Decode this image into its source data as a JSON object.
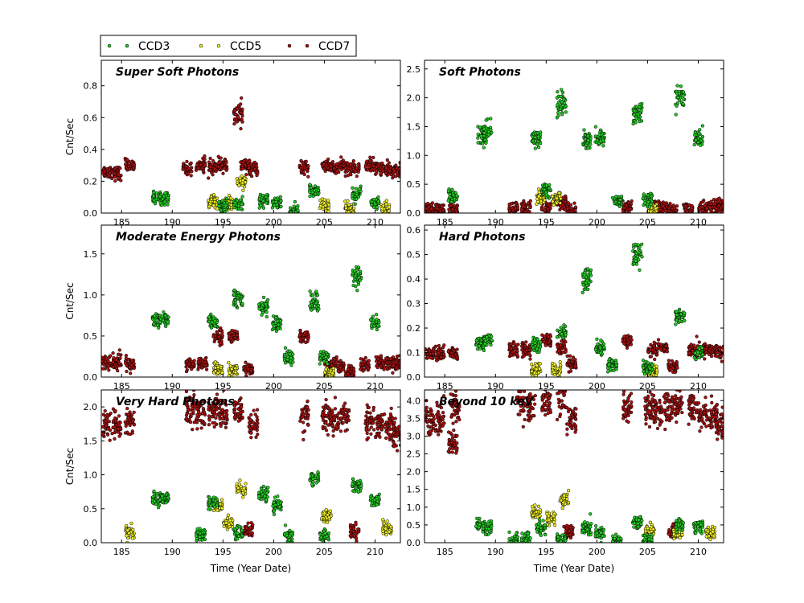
{
  "legend": {
    "entries": [
      {
        "label": "CCD3",
        "color": "#22cc22"
      },
      {
        "label": "CCD5",
        "color": "#eeee22"
      },
      {
        "label": "CCD7",
        "color": "#aa1111"
      }
    ],
    "position": "top-left, above plots"
  },
  "chart_data": [
    {
      "type": "scatter",
      "title": "Super Soft Photons",
      "xlabel": "",
      "ylabel": "Cnt/Sec",
      "xlim": [
        183,
        212.5
      ],
      "ylim": [
        0,
        0.96
      ],
      "xticks": [
        "185",
        "190",
        "195",
        "200",
        "205",
        "210"
      ],
      "yticks": [
        "0.0",
        "0.2",
        "0.4",
        "0.6",
        "0.8"
      ],
      "series": [
        {
          "name": "CCD3",
          "clusters": [
            [
              188.5,
              0.09
            ],
            [
              189.2,
              0.09
            ],
            [
              195.0,
              0.05
            ],
            [
              196.5,
              0.06
            ],
            [
              199.0,
              0.08
            ],
            [
              200.3,
              0.06
            ],
            [
              202.0,
              0.0
            ],
            [
              204.0,
              0.14
            ],
            [
              208.2,
              0.12
            ],
            [
              210.0,
              0.06
            ]
          ]
        },
        {
          "name": "CCD5",
          "clusters": [
            [
              194.0,
              0.07
            ],
            [
              195.5,
              0.06
            ],
            [
              196.8,
              0.2
            ],
            [
              205.0,
              0.05
            ],
            [
              207.5,
              0.03
            ],
            [
              211.0,
              0.03
            ]
          ]
        },
        {
          "name": "CCD7",
          "clusters": [
            [
              183.5,
              0.26
            ],
            [
              184.5,
              0.25
            ],
            [
              185.8,
              0.3
            ],
            [
              191.5,
              0.28
            ],
            [
              192.8,
              0.3
            ],
            [
              194.0,
              0.29
            ],
            [
              195.0,
              0.3
            ],
            [
              196.5,
              0.62
            ],
            [
              197.2,
              0.3
            ],
            [
              198.0,
              0.28
            ],
            [
              203.0,
              0.28
            ],
            [
              205.2,
              0.3
            ],
            [
              206.0,
              0.28
            ],
            [
              207.0,
              0.29
            ],
            [
              208.0,
              0.28
            ],
            [
              209.5,
              0.3
            ],
            [
              210.5,
              0.28
            ],
            [
              211.5,
              0.27
            ],
            [
              212.2,
              0.27
            ]
          ]
        }
      ]
    },
    {
      "type": "scatter",
      "title": "Soft Photons",
      "xlabel": "",
      "ylabel": "",
      "xlim": [
        183,
        212.5
      ],
      "ylim": [
        0,
        2.65
      ],
      "xticks": [
        "185",
        "190",
        "195",
        "200",
        "205",
        "210"
      ],
      "yticks": [
        "0.0",
        "0.5",
        "1.0",
        "1.5",
        "2.0",
        "2.5"
      ],
      "series": [
        {
          "name": "CCD3",
          "clusters": [
            [
              185.8,
              0.3
            ],
            [
              188.7,
              1.35
            ],
            [
              189.2,
              1.4
            ],
            [
              194.0,
              1.3
            ],
            [
              195.0,
              0.4
            ],
            [
              196.5,
              1.9
            ],
            [
              199.0,
              1.25
            ],
            [
              200.3,
              1.3
            ],
            [
              202.0,
              0.2
            ],
            [
              204.0,
              1.75
            ],
            [
              205.0,
              0.25
            ],
            [
              208.2,
              2.0
            ],
            [
              210.0,
              1.3
            ]
          ]
        },
        {
          "name": "CCD5",
          "clusters": [
            [
              194.5,
              0.3
            ],
            [
              196.0,
              0.25
            ],
            [
              205.5,
              0.1
            ]
          ]
        },
        {
          "name": "CCD7",
          "clusters": [
            [
              183.5,
              0.08
            ],
            [
              184.5,
              0.08
            ],
            [
              185.8,
              0.08
            ],
            [
              191.8,
              0.08
            ],
            [
              193.0,
              0.1
            ],
            [
              195.0,
              0.1
            ],
            [
              196.5,
              0.2
            ],
            [
              197.5,
              0.05
            ],
            [
              203.0,
              0.1
            ],
            [
              205.5,
              0.1
            ],
            [
              206.5,
              0.1
            ],
            [
              207.5,
              0.05
            ],
            [
              209.0,
              0.08
            ],
            [
              210.5,
              0.1
            ],
            [
              211.5,
              0.1
            ],
            [
              212.2,
              0.1
            ]
          ]
        }
      ]
    },
    {
      "type": "scatter",
      "title": "Moderate Energy Photons",
      "xlabel": "",
      "ylabel": "Cnt/Sec",
      "xlim": [
        183,
        212.5
      ],
      "ylim": [
        0,
        1.85
      ],
      "xticks": [
        "185",
        "190",
        "195",
        "200",
        "205",
        "210"
      ],
      "yticks": [
        "0.0",
        "0.5",
        "1.0",
        "1.5"
      ],
      "series": [
        {
          "name": "CCD3",
          "clusters": [
            [
              188.5,
              0.7
            ],
            [
              189.2,
              0.72
            ],
            [
              194.0,
              0.68
            ],
            [
              196.5,
              0.95
            ],
            [
              199.0,
              0.85
            ],
            [
              200.3,
              0.65
            ],
            [
              201.5,
              0.25
            ],
            [
              204.0,
              0.9
            ],
            [
              205.0,
              0.25
            ],
            [
              208.2,
              1.2
            ],
            [
              210.0,
              0.65
            ]
          ]
        },
        {
          "name": "CCD5",
          "clusters": [
            [
              194.5,
              0.1
            ],
            [
              196.0,
              0.08
            ],
            [
              205.5,
              0.05
            ]
          ]
        },
        {
          "name": "CCD7",
          "clusters": [
            [
              183.5,
              0.18
            ],
            [
              184.5,
              0.18
            ],
            [
              185.8,
              0.15
            ],
            [
              191.8,
              0.15
            ],
            [
              193.0,
              0.17
            ],
            [
              194.5,
              0.5
            ],
            [
              196.0,
              0.5
            ],
            [
              197.5,
              0.1
            ],
            [
              203.0,
              0.5
            ],
            [
              205.5,
              0.15
            ],
            [
              206.5,
              0.15
            ],
            [
              207.5,
              0.05
            ],
            [
              209.0,
              0.15
            ],
            [
              210.5,
              0.18
            ],
            [
              211.5,
              0.17
            ],
            [
              212.2,
              0.17
            ]
          ]
        }
      ]
    },
    {
      "type": "scatter",
      "title": "Hard Photons",
      "xlabel": "",
      "ylabel": "",
      "xlim": [
        183,
        212.5
      ],
      "ylim": [
        0,
        0.62
      ],
      "xticks": [
        "185",
        "190",
        "195",
        "200",
        "205",
        "210"
      ],
      "yticks": [
        "0.0",
        "0.1",
        "0.2",
        "0.3",
        "0.4",
        "0.5",
        "0.6"
      ],
      "series": [
        {
          "name": "CCD3",
          "clusters": [
            [
              188.5,
              0.14
            ],
            [
              189.2,
              0.15
            ],
            [
              194.0,
              0.13
            ],
            [
              196.5,
              0.18
            ],
            [
              199.0,
              0.4
            ],
            [
              200.3,
              0.12
            ],
            [
              201.5,
              0.05
            ],
            [
              204.0,
              0.5
            ],
            [
              205.0,
              0.04
            ],
            [
              208.2,
              0.25
            ],
            [
              210.0,
              0.1
            ]
          ]
        },
        {
          "name": "CCD5",
          "clusters": [
            [
              194.0,
              0.03
            ],
            [
              196.0,
              0.03
            ],
            [
              205.5,
              0.02
            ]
          ]
        },
        {
          "name": "CCD7",
          "clusters": [
            [
              183.5,
              0.1
            ],
            [
              184.5,
              0.1
            ],
            [
              185.8,
              0.1
            ],
            [
              191.8,
              0.11
            ],
            [
              193.0,
              0.11
            ],
            [
              195.0,
              0.15
            ],
            [
              196.5,
              0.12
            ],
            [
              197.5,
              0.05
            ],
            [
              203.0,
              0.15
            ],
            [
              205.5,
              0.11
            ],
            [
              206.5,
              0.12
            ],
            [
              207.5,
              0.04
            ],
            [
              209.5,
              0.11
            ],
            [
              210.5,
              0.11
            ],
            [
              211.5,
              0.11
            ],
            [
              212.2,
              0.1
            ]
          ]
        }
      ]
    },
    {
      "type": "scatter",
      "title": "Very Hard Photons",
      "xlabel": "Time (Year Date)",
      "ylabel": "Cnt/Sec",
      "xlim": [
        183,
        212.5
      ],
      "ylim": [
        0,
        2.25
      ],
      "xticks": [
        "185",
        "190",
        "195",
        "200",
        "205",
        "210"
      ],
      "yticks": [
        "0.0",
        "0.5",
        "1.0",
        "1.5",
        "2.0"
      ],
      "series": [
        {
          "name": "CCD3",
          "clusters": [
            [
              188.5,
              0.65
            ],
            [
              189.2,
              0.65
            ],
            [
              192.8,
              0.12
            ],
            [
              194.0,
              0.58
            ],
            [
              196.5,
              0.15
            ],
            [
              199.0,
              0.72
            ],
            [
              200.3,
              0.55
            ],
            [
              201.5,
              0.1
            ],
            [
              204.0,
              0.95
            ],
            [
              205.0,
              0.1
            ],
            [
              208.2,
              0.85
            ],
            [
              210.0,
              0.62
            ]
          ]
        },
        {
          "name": "CCD5",
          "clusters": [
            [
              185.8,
              0.15
            ],
            [
              194.5,
              0.55
            ],
            [
              195.5,
              0.3
            ],
            [
              196.8,
              0.8
            ],
            [
              205.2,
              0.38
            ],
            [
              211.2,
              0.2
            ]
          ]
        },
        {
          "name": "CCD7",
          "clusters": [
            [
              183.5,
              1.7
            ],
            [
              184.5,
              1.72
            ],
            [
              185.8,
              1.78
            ],
            [
              191.8,
              1.95
            ],
            [
              192.8,
              1.9
            ],
            [
              194.0,
              1.95
            ],
            [
              195.0,
              1.9
            ],
            [
              196.5,
              1.95
            ],
            [
              197.5,
              0.18
            ],
            [
              198.0,
              1.7
            ],
            [
              203.0,
              1.85
            ],
            [
              205.2,
              1.82
            ],
            [
              206.0,
              1.8
            ],
            [
              207.0,
              1.85
            ],
            [
              208.0,
              0.18
            ],
            [
              209.5,
              1.8
            ],
            [
              210.5,
              1.75
            ],
            [
              211.5,
              1.72
            ],
            [
              212.2,
              1.6
            ]
          ]
        }
      ]
    },
    {
      "type": "scatter",
      "title": "Beyond 10 keV",
      "xlabel": "Time (Year Date)",
      "ylabel": "",
      "xlim": [
        183,
        212.5
      ],
      "ylim": [
        0,
        4.3
      ],
      "xticks": [
        "185",
        "190",
        "195",
        "200",
        "205",
        "210"
      ],
      "yticks": [
        "0.0",
        "0.5",
        "1.0",
        "1.5",
        "2.0",
        "2.5",
        "3.0",
        "3.5",
        "4.0"
      ],
      "series": [
        {
          "name": "CCD3",
          "clusters": [
            [
              188.5,
              0.48
            ],
            [
              189.2,
              0.45
            ],
            [
              191.8,
              0.05
            ],
            [
              193.0,
              0.08
            ],
            [
              194.5,
              0.42
            ],
            [
              196.5,
              0.05
            ],
            [
              199.0,
              0.42
            ],
            [
              200.3,
              0.25
            ],
            [
              202.0,
              0.05
            ],
            [
              204.0,
              0.55
            ],
            [
              205.0,
              0.05
            ],
            [
              208.2,
              0.5
            ],
            [
              210.0,
              0.45
            ]
          ]
        },
        {
          "name": "CCD5",
          "clusters": [
            [
              194.0,
              0.85
            ],
            [
              195.5,
              0.7
            ],
            [
              196.8,
              1.22
            ],
            [
              205.2,
              0.3
            ],
            [
              208.0,
              0.3
            ],
            [
              211.2,
              0.25
            ]
          ]
        },
        {
          "name": "CCD7",
          "clusters": [
            [
              183.5,
              3.5
            ],
            [
              184.5,
              3.45
            ],
            [
              185.8,
              2.8
            ],
            [
              186.0,
              3.8
            ],
            [
              192.5,
              4.0
            ],
            [
              193.5,
              3.9
            ],
            [
              195.0,
              4.0
            ],
            [
              196.5,
              4.1
            ],
            [
              197.5,
              3.5
            ],
            [
              197.2,
              0.32
            ],
            [
              203.0,
              3.8
            ],
            [
              205.2,
              3.8
            ],
            [
              206.0,
              3.7
            ],
            [
              207.0,
              3.85
            ],
            [
              208.0,
              3.9
            ],
            [
              209.5,
              3.85
            ],
            [
              210.5,
              3.6
            ],
            [
              211.5,
              3.55
            ],
            [
              212.2,
              3.3
            ],
            [
              207.5,
              0.35
            ]
          ]
        }
      ]
    }
  ]
}
